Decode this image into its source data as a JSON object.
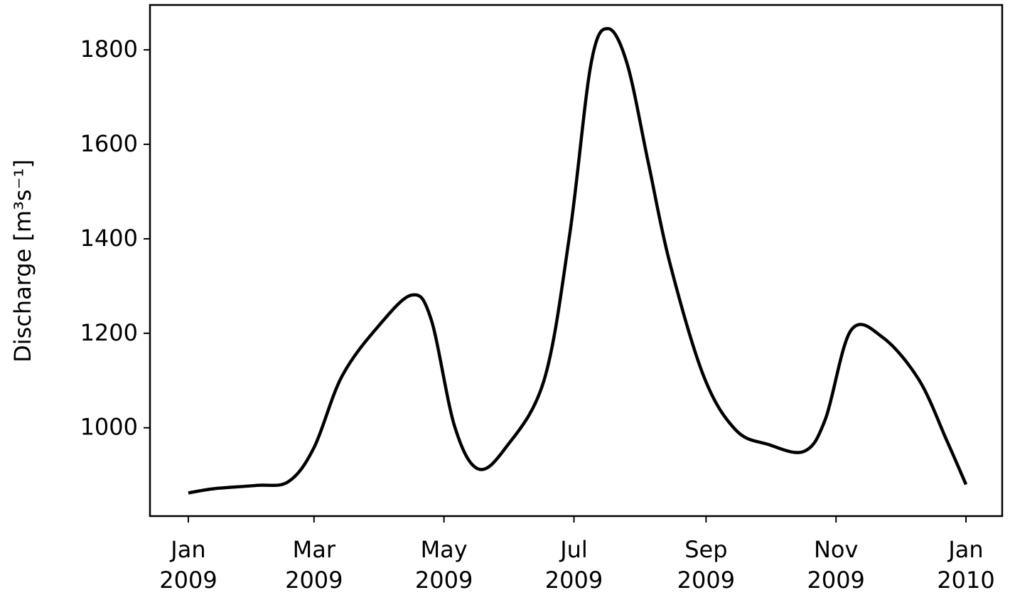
{
  "chart_data": {
    "type": "line",
    "ylabel": "Discharge [m³s⁻¹]",
    "x": [
      "2009-01-01",
      "2009-01-13",
      "2009-02-02",
      "2009-02-17",
      "2009-03-01",
      "2009-03-14",
      "2009-03-31",
      "2009-04-16",
      "2009-04-25",
      "2009-05-06",
      "2009-05-17",
      "2009-05-30",
      "2009-06-17",
      "2009-06-29",
      "2009-07-09",
      "2009-07-17",
      "2009-07-26",
      "2009-08-05",
      "2009-08-15",
      "2009-08-31",
      "2009-09-15",
      "2009-09-30",
      "2009-10-17",
      "2009-10-27",
      "2009-11-08",
      "2009-11-23",
      "2009-12-10",
      "2009-12-23",
      "2010-01-01"
    ],
    "series": [
      {
        "color": "#000000",
        "values": [
          862,
          871,
          878,
          886,
          958,
          1108,
          1214,
          1281,
          1229,
          1003,
          913,
          958,
          1101,
          1409,
          1770,
          1845,
          1770,
          1559,
          1349,
          1108,
          995,
          965,
          950,
          1018,
          1206,
          1191,
          1101,
          973,
          880
        ]
      }
    ],
    "xlim": [
      "2008-12-14",
      "2010-01-18"
    ],
    "xticks": [
      {
        "value": "2009-01-01",
        "label": "Jan\n2009"
      },
      {
        "value": "2009-03-01",
        "label": "Mar\n2009"
      },
      {
        "value": "2009-05-01",
        "label": "May\n2009"
      },
      {
        "value": "2009-07-01",
        "label": "Jul\n2009"
      },
      {
        "value": "2009-09-01",
        "label": "Sep\n2009"
      },
      {
        "value": "2009-11-01",
        "label": "Nov\n2009"
      },
      {
        "value": "2010-01-01",
        "label": "Jan\n2010"
      }
    ],
    "ylim": [
      813,
      1895
    ],
    "yticks": [
      1000,
      1200,
      1400,
      1600,
      1800
    ],
    "grid": false
  }
}
